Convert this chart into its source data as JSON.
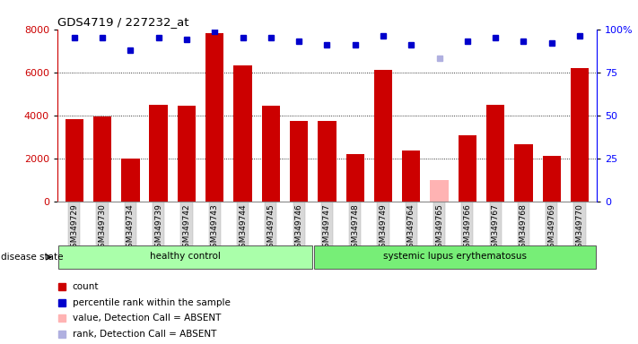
{
  "title": "GDS4719 / 227232_at",
  "samples": [
    "GSM349729",
    "GSM349730",
    "GSM349734",
    "GSM349739",
    "GSM349742",
    "GSM349743",
    "GSM349744",
    "GSM349745",
    "GSM349746",
    "GSM349747",
    "GSM349748",
    "GSM349749",
    "GSM349764",
    "GSM349765",
    "GSM349766",
    "GSM349767",
    "GSM349768",
    "GSM349769",
    "GSM349770"
  ],
  "bar_heights": [
    3800,
    3950,
    2000,
    4500,
    4450,
    7800,
    6300,
    4450,
    3750,
    3750,
    2200,
    6100,
    2350,
    1000,
    3050,
    4500,
    2650,
    2100,
    6200
  ],
  "bar_colors": [
    "#cc0000",
    "#cc0000",
    "#cc0000",
    "#cc0000",
    "#cc0000",
    "#cc0000",
    "#cc0000",
    "#cc0000",
    "#cc0000",
    "#cc0000",
    "#cc0000",
    "#cc0000",
    "#cc0000",
    "#ffb3b3",
    "#cc0000",
    "#cc0000",
    "#cc0000",
    "#cc0000",
    "#cc0000"
  ],
  "blue_dots": [
    95,
    95,
    88,
    95,
    94,
    99,
    95,
    95,
    93,
    91,
    91,
    96,
    91,
    83,
    93,
    95,
    93,
    92,
    96
  ],
  "blue_dot_colors": [
    "#0000cc",
    "#0000cc",
    "#0000cc",
    "#0000cc",
    "#0000cc",
    "#0000cc",
    "#0000cc",
    "#0000cc",
    "#0000cc",
    "#0000cc",
    "#0000cc",
    "#0000cc",
    "#0000cc",
    "#b0b0e0",
    "#0000cc",
    "#0000cc",
    "#0000cc",
    "#0000cc",
    "#0000cc"
  ],
  "groups": [
    {
      "label": "healthy control",
      "start": 0,
      "end": 9,
      "color": "#aaffaa"
    },
    {
      "label": "systemic lupus erythematosus",
      "start": 9,
      "end": 19,
      "color": "#77ee77"
    }
  ],
  "disease_state_label": "disease state",
  "ylim_left": [
    0,
    8000
  ],
  "ylim_right": [
    0,
    100
  ],
  "yticks_left": [
    0,
    2000,
    4000,
    6000,
    8000
  ],
  "yticks_right": [
    0,
    25,
    50,
    75,
    100
  ],
  "yticklabels_right": [
    "0",
    "25",
    "50",
    "75",
    "100%"
  ],
  "background_color": "#ffffff",
  "legend_items": [
    {
      "label": "count",
      "color": "#cc0000"
    },
    {
      "label": "percentile rank within the sample",
      "color": "#0000cc"
    },
    {
      "label": "value, Detection Call = ABSENT",
      "color": "#ffb3b3"
    },
    {
      "label": "rank, Detection Call = ABSENT",
      "color": "#b0b0e0"
    }
  ]
}
